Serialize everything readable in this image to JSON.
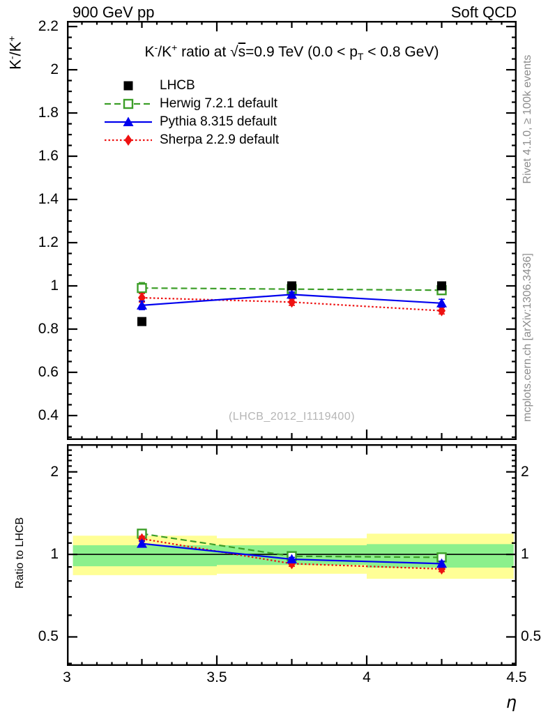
{
  "header": {
    "left": "900 GeV pp",
    "right": "Soft QCD"
  },
  "side_notes": {
    "top": "Rivet 4.1.0, ≥ 100k events",
    "bottom": "mcplots.cern.ch [arXiv:1306.3436]"
  },
  "watermark": "(LHCB_2012_I1119400)",
  "title_parts": {
    "seg1": "K",
    "sup1": "-",
    "seg2": "/K",
    "sup2": "+",
    "seg3": " ratio at ",
    "sqrt": "√",
    "sqrt_arg": "s",
    "seg4": "=0.9 TeV (0.0 < p",
    "sub1": "T",
    "seg5": " < 0.8 GeV)"
  },
  "ylabel_parts": {
    "seg1": "K",
    "sup1": "-",
    "seg2": "/K",
    "sup2": "+"
  },
  "colors": {
    "lhcb": "#000000",
    "herwig": "#3c9e28",
    "pythia": "#0000ee",
    "sherpa": "#ee1111",
    "band_yellow": "#ffff96",
    "band_green": "#8cf08c",
    "gray_text": "#8c8c8c",
    "watermark_gray": "#b5b5b5"
  },
  "legend": [
    {
      "label": "LHCB",
      "marker": "filled-square",
      "color": "#000000",
      "line": "none"
    },
    {
      "label": "Herwig 7.2.1 default",
      "marker": "open-square",
      "color": "#3c9e28",
      "line": "dashed"
    },
    {
      "label": "Pythia 8.315 default",
      "marker": "filled-triangle",
      "color": "#0000ee",
      "line": "solid"
    },
    {
      "label": "Sherpa 2.2.9 default",
      "marker": "filled-diamond",
      "color": "#ee1111",
      "line": "dotted"
    }
  ],
  "axes": {
    "x": {
      "lim": [
        3.0,
        4.5
      ],
      "major_step": 0.5,
      "medium_step": 0.25,
      "minor_step": 0.05,
      "tick_labels": [
        {
          "v": 3.0,
          "t": "3"
        },
        {
          "v": 3.5,
          "t": "3.5"
        },
        {
          "v": 4.0,
          "t": "4"
        },
        {
          "v": 4.5,
          "t": "4.5"
        }
      ],
      "title": "η"
    },
    "y_main": {
      "lim": [
        0.287,
        2.226
      ],
      "major_start": 0.4,
      "major_end": 2.2,
      "major_step": 0.2,
      "minor_step": 0.05,
      "tick_labels": [
        {
          "v": 2.2,
          "t": "2.2"
        },
        {
          "v": 2.0,
          "t": "2"
        },
        {
          "v": 1.8,
          "t": "1.8"
        },
        {
          "v": 1.6,
          "t": "1.6"
        },
        {
          "v": 1.4,
          "t": "1.4"
        },
        {
          "v": 1.2,
          "t": "1.2"
        },
        {
          "v": 1.0,
          "t": "1"
        },
        {
          "v": 0.8,
          "t": "0.8"
        },
        {
          "v": 0.6,
          "t": "0.6"
        },
        {
          "v": 0.4,
          "t": "0.4"
        }
      ]
    },
    "y_ratio": {
      "lim": [
        0.392,
        2.524
      ],
      "scale": "log",
      "majors": [
        0.5,
        1,
        2
      ],
      "minors": [
        0.4,
        0.6,
        0.7,
        0.8,
        0.9,
        1.1,
        1.2,
        1.3,
        1.4,
        1.5,
        1.6,
        1.7,
        1.8,
        1.9,
        2.1,
        2.2,
        2.3,
        2.4
      ],
      "tick_labels": [
        {
          "v": 2,
          "t": "2"
        },
        {
          "v": 1,
          "t": "1"
        },
        {
          "v": 0.5,
          "t": "0.5"
        }
      ]
    }
  },
  "chart_data": [
    {
      "type": "line",
      "panel": "main",
      "title": "K-/K+ ratio at sqrt(s)=0.9 TeV (0.0 < pT < 0.8 GeV)",
      "xlabel": "η",
      "ylabel": "K-/K+",
      "xlim": [
        3.0,
        4.5
      ],
      "ylim": [
        0.287,
        2.226
      ],
      "x": [
        3.25,
        3.75,
        4.25
      ],
      "series": [
        {
          "name": "Herwig 7.2.1 default",
          "marker": "open-square",
          "color": "#3c9e28",
          "line": "dashed",
          "values": [
            0.99,
            0.985,
            0.98
          ],
          "errors": [
            0.025,
            0.012,
            0.015
          ]
        },
        {
          "name": "Sherpa 2.2.9 default",
          "marker": "filled-diamond",
          "color": "#ee1111",
          "line": "dotted",
          "values": [
            0.945,
            0.925,
            0.885
          ],
          "errors": [
            0.02,
            0.015,
            0.015
          ]
        },
        {
          "name": "Pythia 8.315 default",
          "marker": "filled-triangle",
          "color": "#0000ee",
          "line": "solid",
          "values": [
            0.91,
            0.96,
            0.92
          ],
          "errors": [
            0.02,
            0.012,
            0.018
          ]
        },
        {
          "name": "LHCB",
          "marker": "filled-square",
          "color": "#000000",
          "line": "none",
          "values": [
            0.835,
            1.0,
            1.0
          ],
          "errors": [
            0.012,
            0.012,
            0.012
          ]
        }
      ]
    },
    {
      "type": "line",
      "panel": "ratio",
      "ylabel": "Ratio to LHCB",
      "yscale": "log",
      "xlim": [
        3.0,
        4.5
      ],
      "ylim": [
        0.392,
        2.524
      ],
      "reference_line": 1.0,
      "bands": {
        "bins": [
          [
            3.02,
            3.5
          ],
          [
            3.5,
            4.0
          ],
          [
            4.0,
            4.49
          ]
        ],
        "yellow": [
          [
            0.84,
            1.17
          ],
          [
            0.85,
            1.145
          ],
          [
            0.815,
            1.19
          ]
        ],
        "green": [
          [
            0.905,
            1.08
          ],
          [
            0.915,
            1.08
          ],
          [
            0.895,
            1.09
          ]
        ]
      },
      "x": [
        3.25,
        3.75,
        4.25
      ],
      "series": [
        {
          "name": "Herwig 7.2.1 default",
          "marker": "open-square",
          "color": "#3c9e28",
          "line": "dashed",
          "values": [
            1.19,
            0.985,
            0.975
          ],
          "errors": [
            0.03,
            0.015,
            0.02
          ]
        },
        {
          "name": "Sherpa 2.2.9 default",
          "marker": "filled-diamond",
          "color": "#ee1111",
          "line": "dotted",
          "values": [
            1.14,
            0.925,
            0.885
          ],
          "errors": [
            0.025,
            0.02,
            0.02
          ]
        },
        {
          "name": "Pythia 8.315 default",
          "marker": "filled-triangle",
          "color": "#0000ee",
          "line": "solid",
          "values": [
            1.095,
            0.96,
            0.925
          ],
          "errors": [
            0.025,
            0.015,
            0.02
          ]
        }
      ]
    }
  ]
}
